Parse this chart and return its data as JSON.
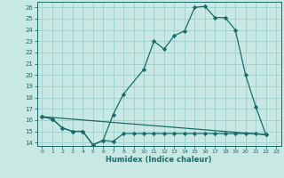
{
  "bg_color": "#c8e8e4",
  "line_color": "#1a6b6b",
  "grid_color": "#9ecece",
  "xlabel": "Humidex (Indice chaleur)",
  "xlim": [
    -0.5,
    23.5
  ],
  "ylim": [
    13.7,
    26.5
  ],
  "xticks": [
    0,
    1,
    2,
    3,
    4,
    5,
    6,
    7,
    8,
    9,
    10,
    11,
    12,
    13,
    14,
    15,
    16,
    17,
    18,
    19,
    20,
    21,
    22,
    23
  ],
  "yticks": [
    14,
    15,
    16,
    17,
    18,
    19,
    20,
    21,
    22,
    23,
    24,
    25,
    26
  ],
  "line1_x": [
    0,
    1,
    2,
    3,
    4,
    5,
    6,
    7,
    8,
    10,
    11,
    12,
    13,
    14,
    15,
    16,
    17,
    18,
    19,
    20,
    21,
    22
  ],
  "line1_y": [
    16.3,
    16.1,
    15.3,
    15.0,
    15.0,
    13.8,
    14.2,
    16.5,
    18.3,
    20.5,
    23.0,
    22.3,
    23.5,
    23.9,
    26.0,
    26.1,
    25.1,
    25.1,
    24.0,
    20.0,
    17.2,
    14.7
  ],
  "line2_x": [
    0,
    1,
    2,
    3,
    4,
    5,
    6,
    7,
    8,
    9,
    10,
    11,
    12,
    13,
    14,
    15,
    16,
    17,
    18,
    19,
    20,
    21,
    22
  ],
  "line2_y": [
    16.3,
    16.1,
    15.3,
    15.0,
    15.0,
    13.8,
    14.2,
    14.1,
    14.8,
    14.8,
    14.8,
    14.8,
    14.8,
    14.8,
    14.8,
    14.8,
    14.8,
    14.8,
    14.8,
    14.8,
    14.8,
    14.8,
    14.7
  ],
  "line3_x": [
    0,
    22
  ],
  "line3_y": [
    16.3,
    14.7
  ],
  "lw": 0.9,
  "ms": 2.2
}
